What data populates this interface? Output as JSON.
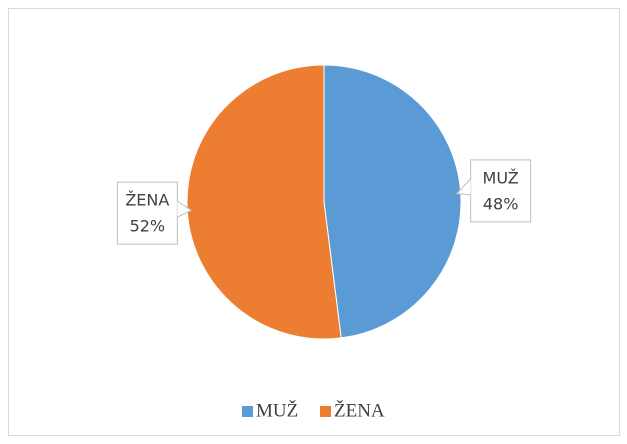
{
  "chart_data": {
    "type": "pie",
    "categories": [
      "MUŽ",
      "ŽENA"
    ],
    "values": [
      48,
      52
    ],
    "value_labels": [
      "48%",
      "52%"
    ],
    "colors": [
      "#5b9bd5",
      "#ed7d31"
    ],
    "legend": "bottom"
  }
}
